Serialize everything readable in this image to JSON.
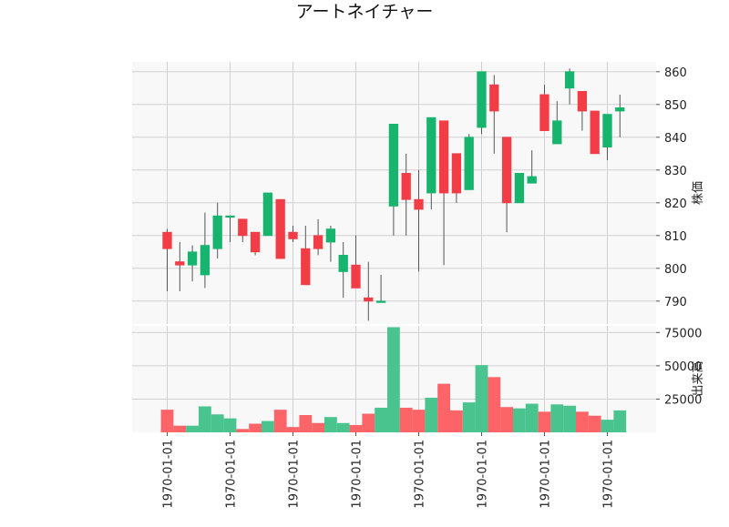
{
  "chart_data": {
    "type": "candlestick",
    "title": "アートネイチャー",
    "price_axis_label": "株価",
    "volume_axis_label": "出来高",
    "price_ylim": [
      783,
      863
    ],
    "price_ticks": [
      790,
      800,
      810,
      820,
      830,
      840,
      850,
      860
    ],
    "volume_ylim": [
      0,
      80000
    ],
    "volume_ticks": [
      25000,
      50000,
      75000
    ],
    "volume_tick_labels": [
      "25000",
      "50000",
      "75000"
    ],
    "x_tick_labels": [
      "1970-01-01",
      "1970-01-01",
      "1970-01-01",
      "1970-01-01",
      "1970-01-01",
      "1970-01-01",
      "1970-01-01",
      "1970-01-01"
    ],
    "x_tick_positions": [
      0,
      5,
      10,
      15,
      20,
      25,
      30,
      35
    ],
    "grid": true,
    "colors": {
      "up": "#16b46c",
      "down": "#f23c46",
      "up_volume": "#4ac48e",
      "down_volume": "#fc6468",
      "wick": "#555555",
      "panel_bg": "#f8f8f8",
      "grid": "#d0d0d0"
    },
    "candles": [
      {
        "open": 811,
        "high": 812,
        "low": 793,
        "close": 806,
        "volume": 17000
      },
      {
        "open": 802,
        "high": 808,
        "low": 793,
        "close": 801,
        "volume": 5000
      },
      {
        "open": 801,
        "high": 807,
        "low": 796,
        "close": 805,
        "volume": 5000
      },
      {
        "open": 798,
        "high": 817,
        "low": 794,
        "close": 807,
        "volume": 19500
      },
      {
        "open": 806,
        "high": 820,
        "low": 803,
        "close": 816,
        "volume": 13500
      },
      {
        "open": 816,
        "high": 816,
        "low": 808,
        "close": 816,
        "volume": 10500
      },
      {
        "open": 815,
        "high": 815,
        "low": 808,
        "close": 810,
        "volume": 2500
      },
      {
        "open": 811,
        "high": 811,
        "low": 804,
        "close": 805,
        "volume": 6500
      },
      {
        "open": 810,
        "high": 823,
        "low": 810,
        "close": 823,
        "volume": 8500
      },
      {
        "open": 821,
        "high": 821,
        "low": 803,
        "close": 803,
        "volume": 17000
      },
      {
        "open": 811,
        "high": 813,
        "low": 808,
        "close": 809,
        "volume": 4000
      },
      {
        "open": 806,
        "high": 813,
        "low": 795,
        "close": 795,
        "volume": 13000
      },
      {
        "open": 810,
        "high": 815,
        "low": 804,
        "close": 806,
        "volume": 7000
      },
      {
        "open": 808,
        "high": 813,
        "low": 802,
        "close": 812,
        "volume": 11500
      },
      {
        "open": 799,
        "high": 808,
        "low": 791,
        "close": 804,
        "volume": 7000
      },
      {
        "open": 801,
        "high": 810,
        "low": 794,
        "close": 794,
        "volume": 5500
      },
      {
        "open": 791,
        "high": 802,
        "low": 784,
        "close": 790,
        "volume": 14000
      },
      {
        "open": 790,
        "high": 798,
        "low": 790,
        "close": 790,
        "volume": 18500
      },
      {
        "open": 819,
        "high": 844,
        "low": 810,
        "close": 844,
        "volume": 79000
      },
      {
        "open": 829,
        "high": 835,
        "low": 810,
        "close": 821,
        "volume": 18500
      },
      {
        "open": 821,
        "high": 830,
        "low": 799,
        "close": 818,
        "volume": 17000
      },
      {
        "open": 823,
        "high": 846,
        "low": 818,
        "close": 846,
        "volume": 26000
      },
      {
        "open": 845,
        "high": 845,
        "low": 801,
        "close": 823,
        "volume": 36500
      },
      {
        "open": 835,
        "high": 835,
        "low": 820,
        "close": 823,
        "volume": 16500
      },
      {
        "open": 824,
        "high": 841,
        "low": 824,
        "close": 840,
        "volume": 22500
      },
      {
        "open": 843,
        "high": 860,
        "low": 841,
        "close": 860,
        "volume": 50500
      },
      {
        "open": 856,
        "high": 859,
        "low": 835,
        "close": 848,
        "volume": 41500
      },
      {
        "open": 840,
        "high": 840,
        "low": 811,
        "close": 820,
        "volume": 19000
      },
      {
        "open": 820,
        "high": 829,
        "low": 820,
        "close": 829,
        "volume": 18000
      },
      {
        "open": 826,
        "high": 836,
        "low": 826,
        "close": 828,
        "volume": 21500
      },
      {
        "open": 853,
        "high": 856,
        "low": 842,
        "close": 842,
        "volume": 15500
      },
      {
        "open": 838,
        "high": 851,
        "low": 838,
        "close": 845,
        "volume": 21000
      },
      {
        "open": 855,
        "high": 861,
        "low": 850,
        "close": 860,
        "volume": 20000
      },
      {
        "open": 854,
        "high": 854,
        "low": 842,
        "close": 848,
        "volume": 15500
      },
      {
        "open": 848,
        "high": 848,
        "low": 835,
        "close": 835,
        "volume": 12500
      },
      {
        "open": 837,
        "high": 847,
        "low": 833,
        "close": 847,
        "volume": 9500
      },
      {
        "open": 848,
        "high": 853,
        "low": 840,
        "close": 849,
        "volume": 16500
      }
    ]
  }
}
